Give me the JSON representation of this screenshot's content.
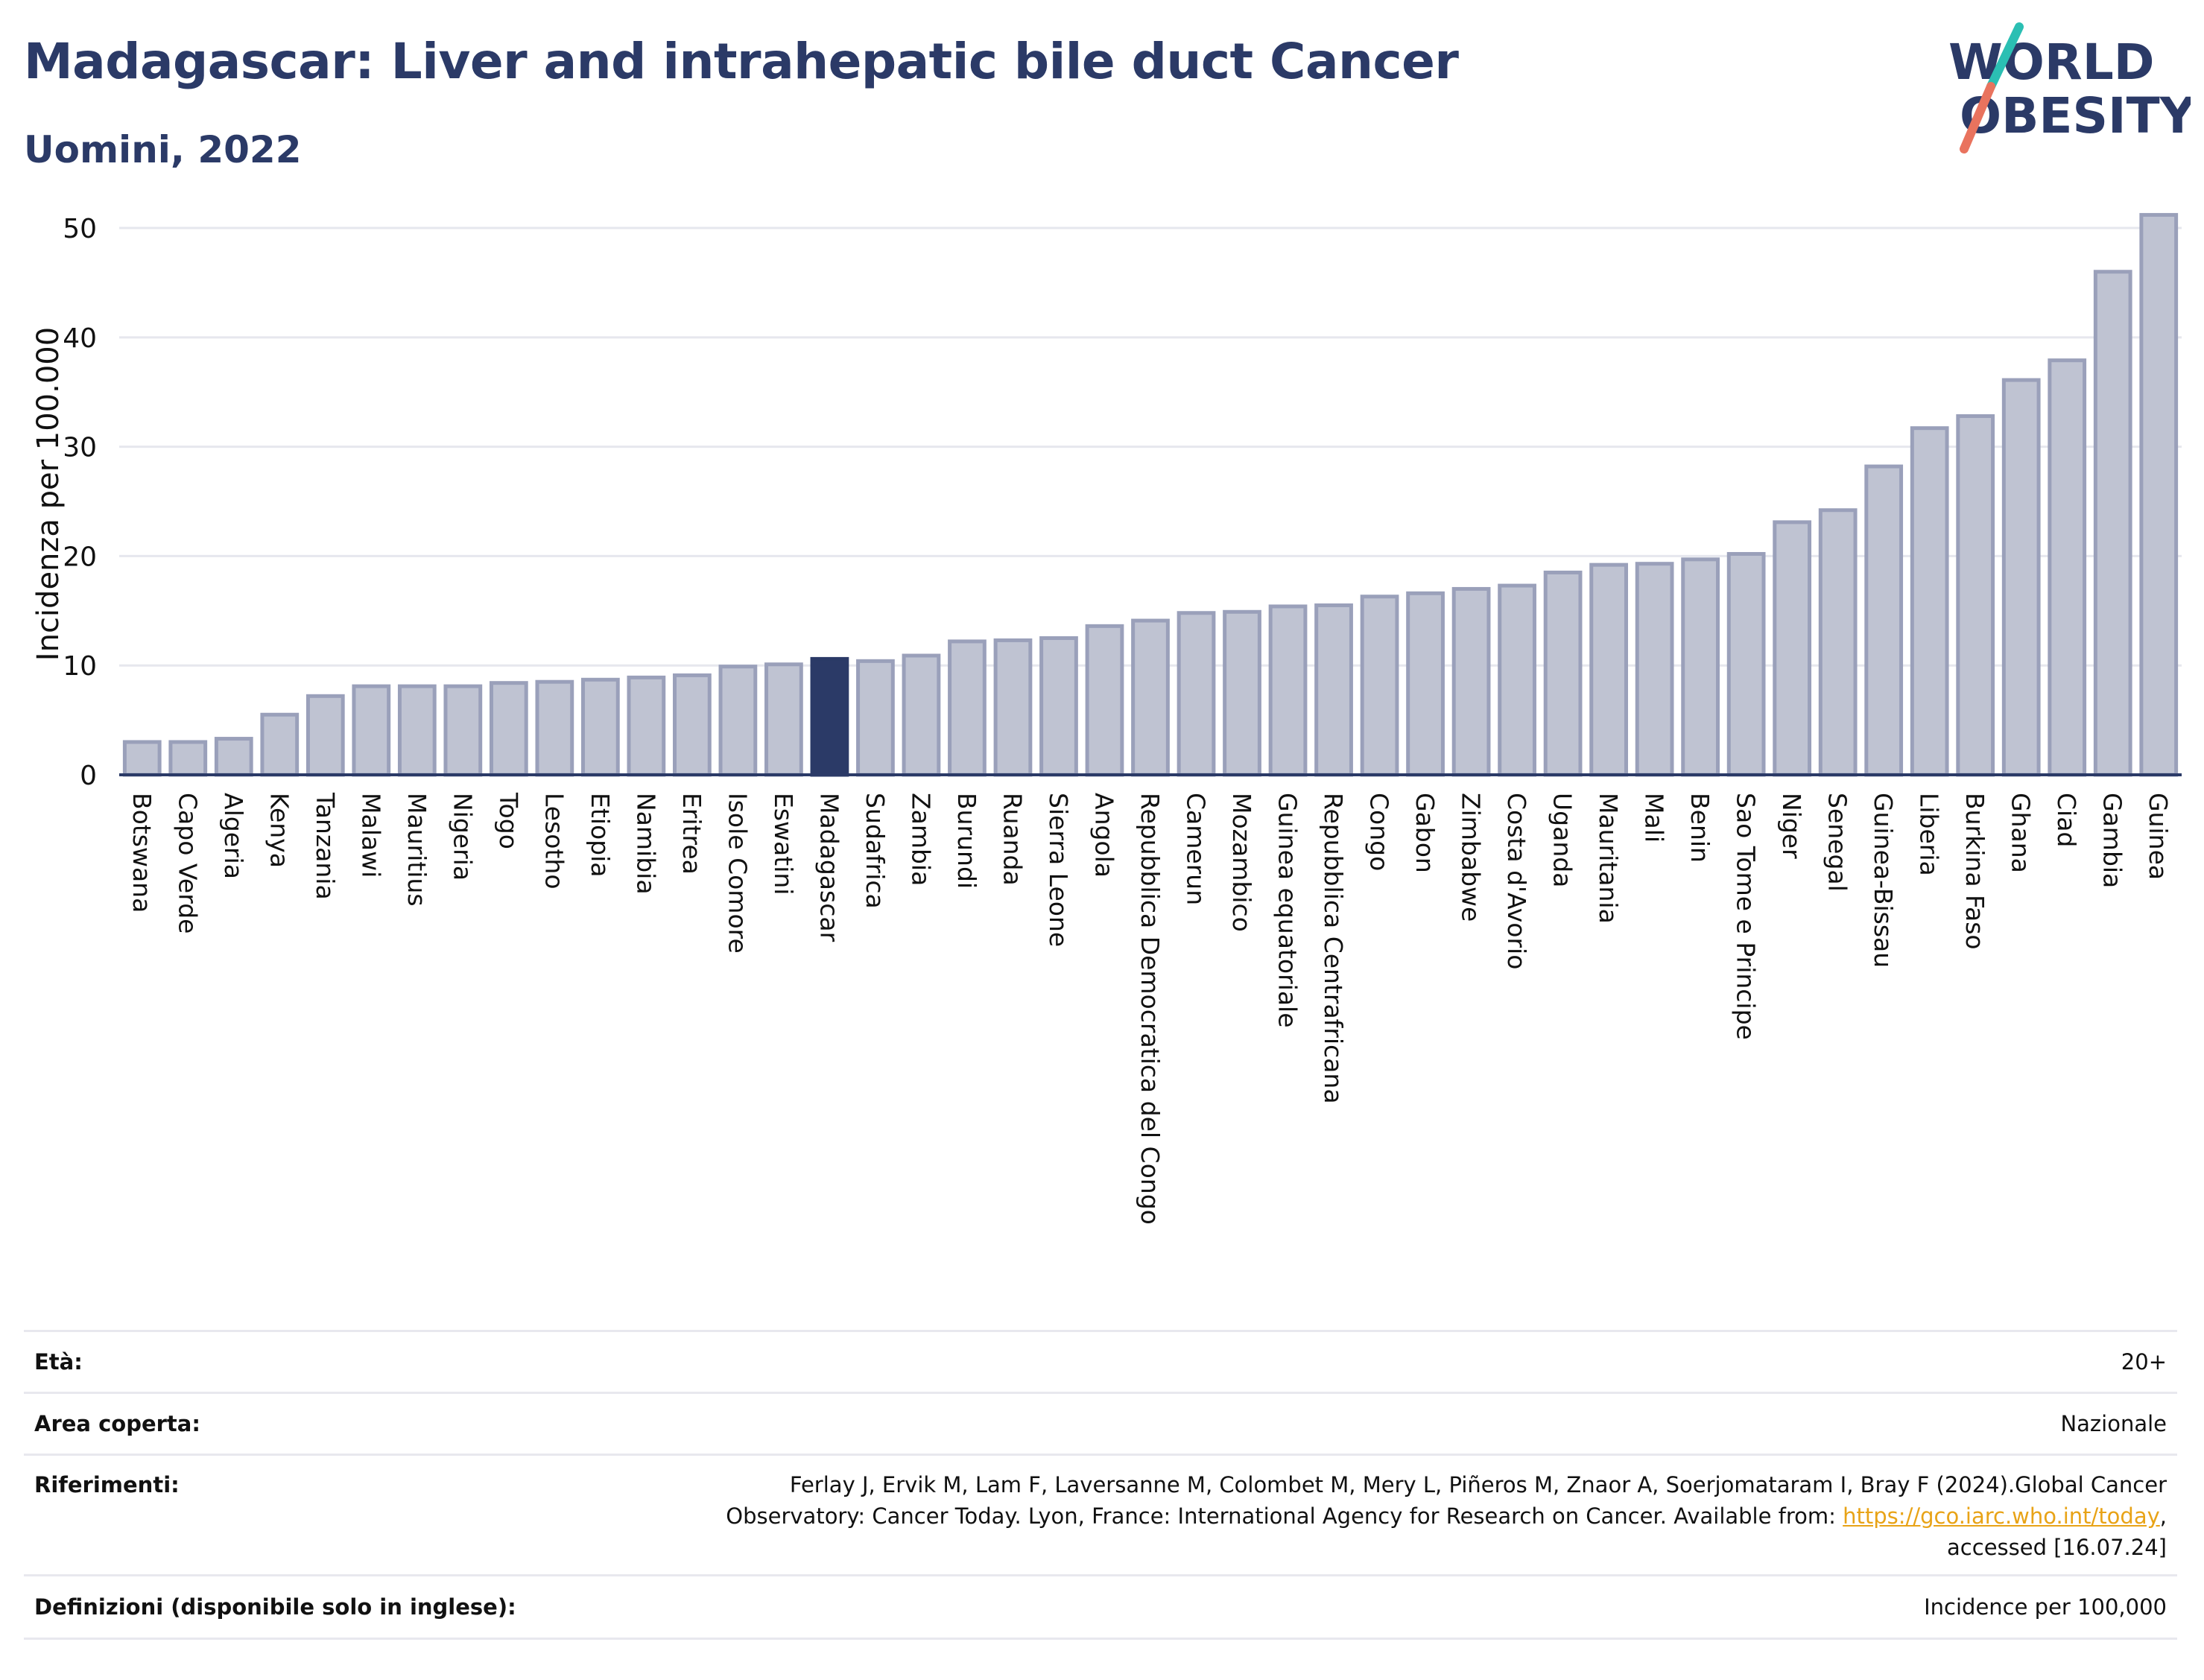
{
  "header": {
    "title": "Madagascar: Liver and intrahepatic bile duct Cancer",
    "subtitle": "Uomini, 2022"
  },
  "logo": {
    "line1": "WORLD",
    "line2": "OBESITY"
  },
  "chart_data": {
    "type": "bar",
    "ylabel": "Incidenza per 100.000",
    "ylim": [
      0,
      53
    ],
    "yticks": [
      0,
      10,
      20,
      30,
      40,
      50
    ],
    "grid": true,
    "highlight": "Madagascar",
    "colors": {
      "bar": "#bfc3d2",
      "bar_edge": "#9aa0ba",
      "highlight": "#2b3a67",
      "grid": "#e6e7ee",
      "axis": "#2b3a67"
    },
    "categories": [
      "Botswana",
      "Capo Verde",
      "Algeria",
      "Kenya",
      "Tanzania",
      "Malawi",
      "Mauritius",
      "Nigeria",
      "Togo",
      "Lesotho",
      "Etiopia",
      "Namibia",
      "Eritrea",
      "Isole Comore",
      "Eswatini",
      "Madagascar",
      "Sudafrica",
      "Zambia",
      "Burundi",
      "Ruanda",
      "Sierra Leone",
      "Angola",
      "Repubblica Democratica del Congo",
      "Camerun",
      "Mozambico",
      "Guinea equatoriale",
      "Repubblica Centrafricana",
      "Congo",
      "Gabon",
      "Zimbabwe",
      "Costa d'Avorio",
      "Uganda",
      "Mauritania",
      "Mali",
      "Benin",
      "Sao Tome e Principe",
      "Niger",
      "Senegal",
      "Guinea-Bissau",
      "Liberia",
      "Burkina Faso",
      "Ghana",
      "Ciad",
      "Gambia",
      "Guinea"
    ],
    "values": [
      3.0,
      3.0,
      3.3,
      5.5,
      7.2,
      8.1,
      8.1,
      8.1,
      8.4,
      8.5,
      8.7,
      8.9,
      9.1,
      9.9,
      10.1,
      10.6,
      10.4,
      10.9,
      12.2,
      12.3,
      12.5,
      13.6,
      14.1,
      14.8,
      14.9,
      15.4,
      15.5,
      16.3,
      16.6,
      17.0,
      17.3,
      18.5,
      19.2,
      19.3,
      19.7,
      20.2,
      23.1,
      24.2,
      28.2,
      31.7,
      32.8,
      36.1,
      37.9,
      46.0,
      51.2
    ]
  },
  "info": {
    "age_label": "Età:",
    "age_value": "20+",
    "area_label": "Area coperta:",
    "area_value": "Nazionale",
    "ref_label": "Riferimenti:",
    "ref_line1": "Ferlay J, Ervik M, Lam F, Laversanne M, Colombet M, Mery L, Piñeros M, Znaor A, Soerjomataram I, Bray F (2024).Global Cancer",
    "ref_line2": "Observatory: Cancer Today. Lyon, France: International Agency for Research on Cancer. Available from:",
    "ref_link": "https://gco.iarc.who.int/today",
    "ref_line3": "accessed [16.07.24]",
    "def_label": "Definizioni (disponibile solo in inglese):",
    "def_value": "Incidence per 100,000"
  }
}
